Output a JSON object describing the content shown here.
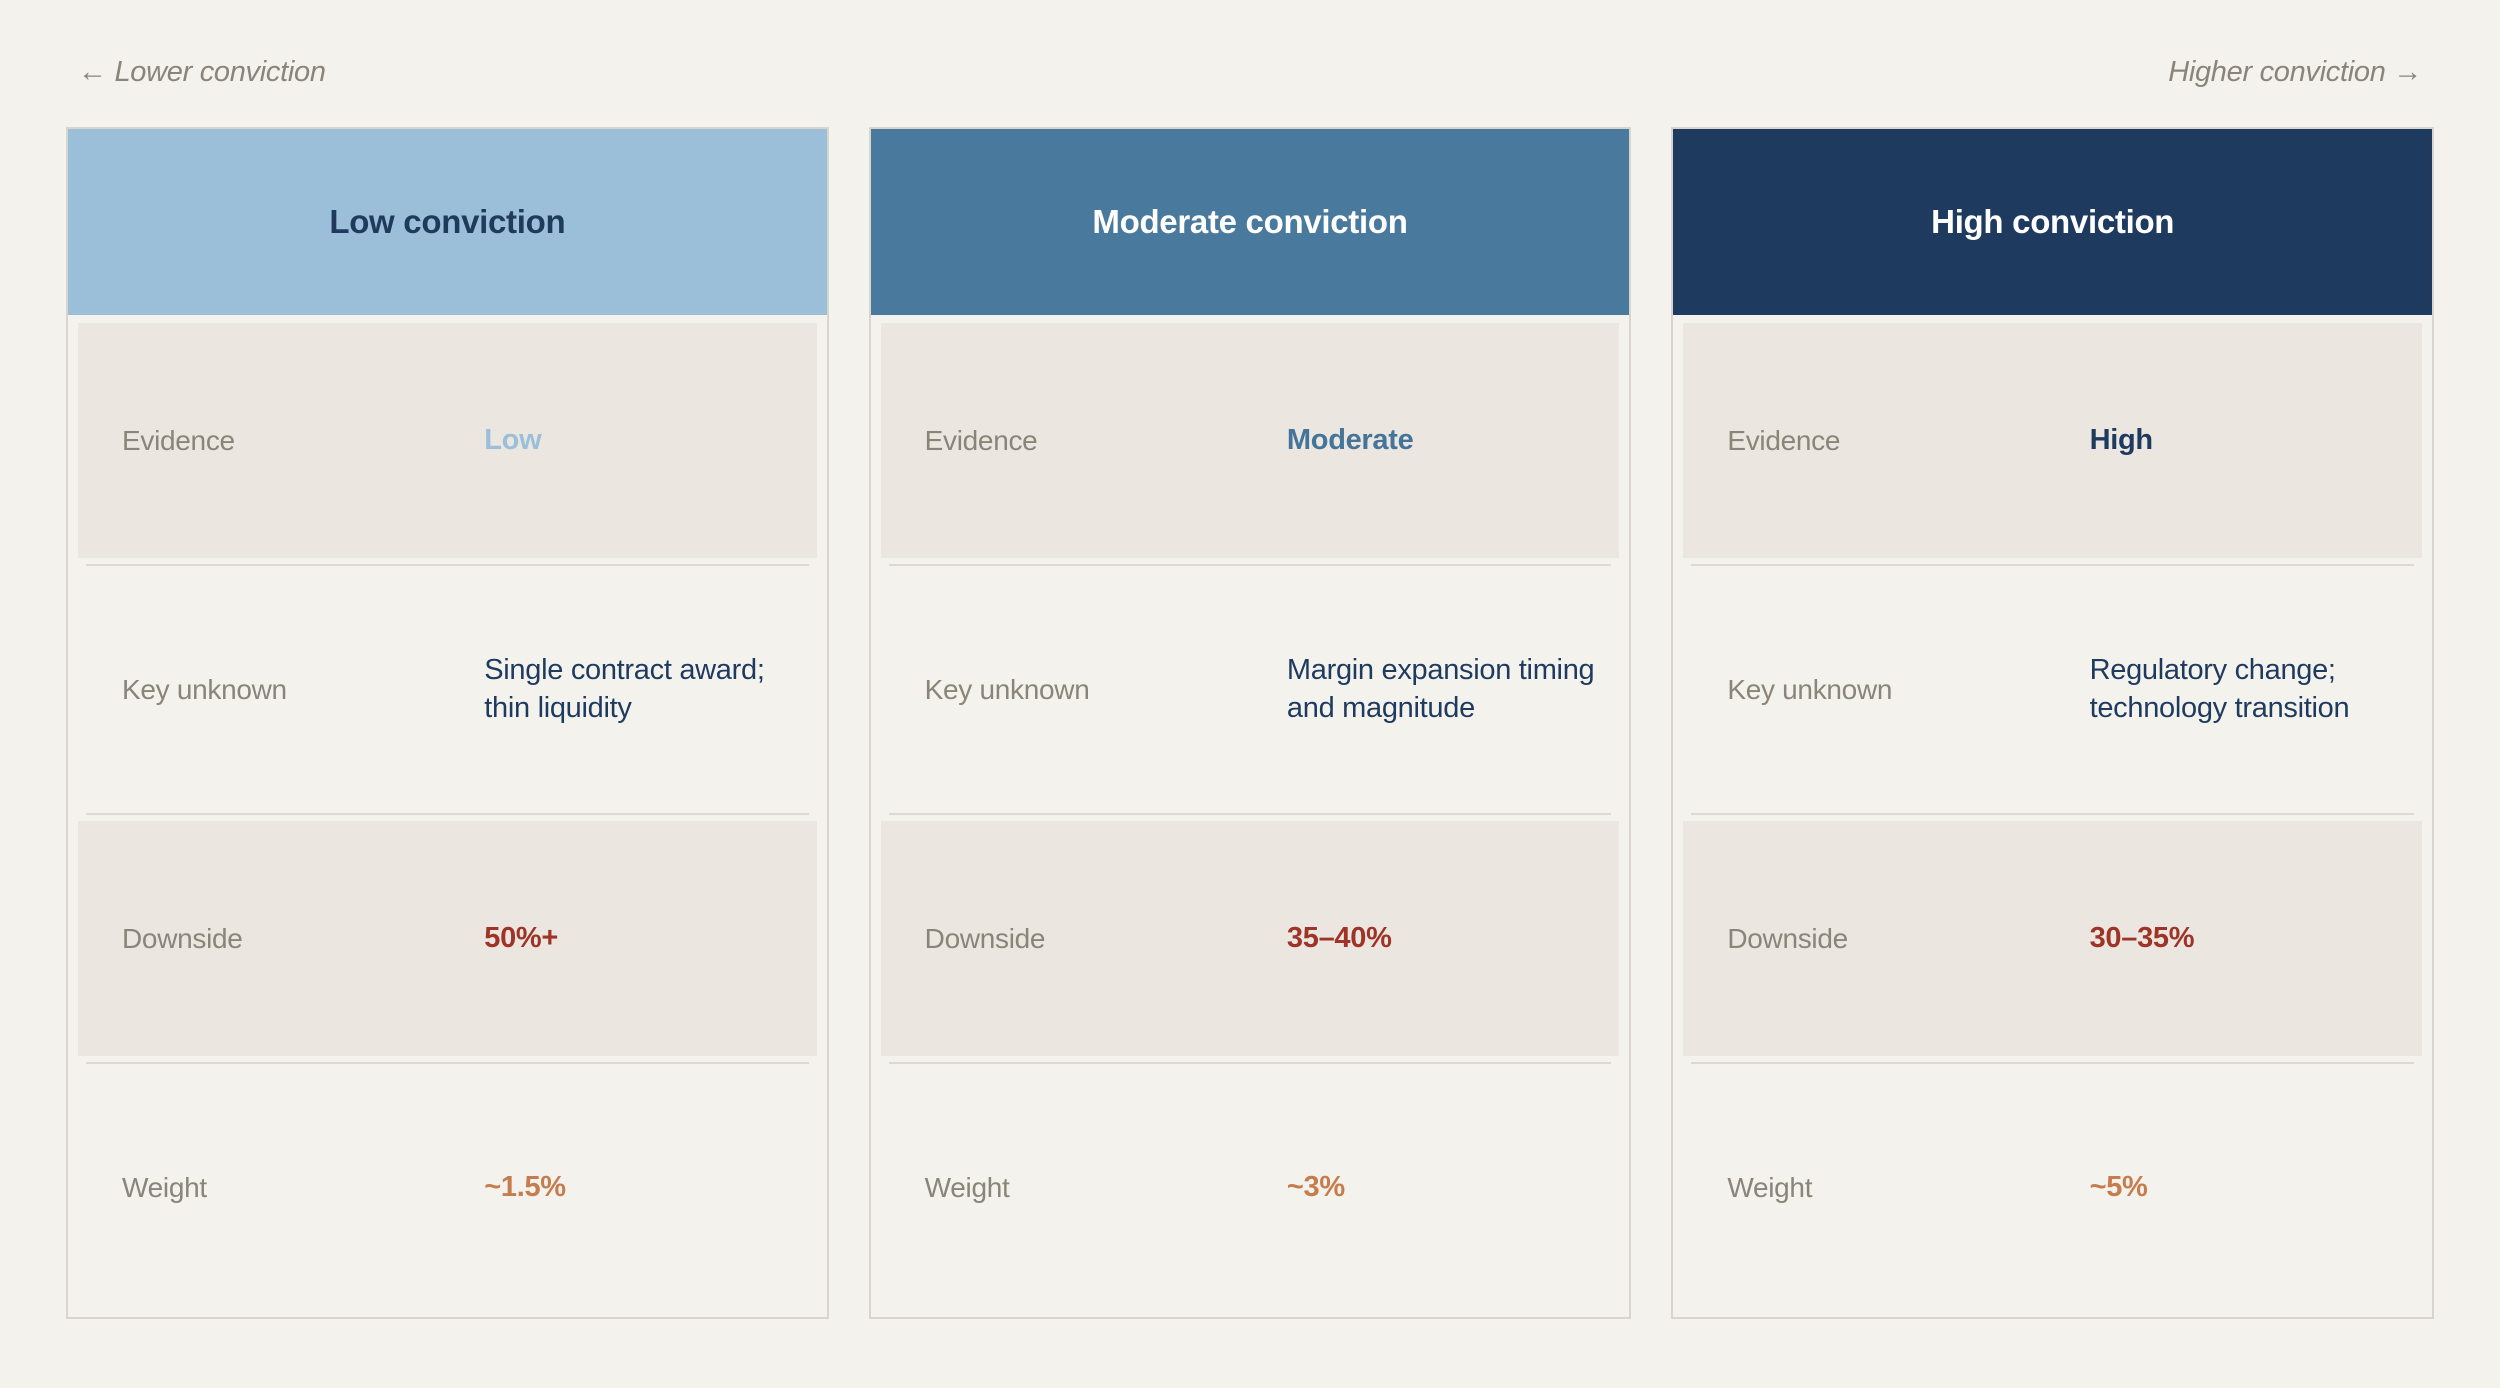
{
  "direction_labels": {
    "left": "← Lower conviction",
    "right": "Higher conviction →"
  },
  "row_labels": {
    "evidence": "Evidence",
    "key_unknown": "Key unknown",
    "downside": "Downside",
    "weight": "Weight"
  },
  "cards": [
    {
      "level": "low",
      "title": "Low conviction",
      "evidence": "Low",
      "key_unknown": "Single contract award; thin liquidity",
      "downside": "50%+",
      "weight": "~1.5%",
      "header_bg": "#9bbfd8",
      "header_text_color": "#1f3a5d",
      "evidence_color": "#9bbfd8"
    },
    {
      "level": "moderate",
      "title": "Moderate conviction",
      "evidence": "Moderate",
      "key_unknown": "Margin expansion timing and magnitude",
      "downside": "35–40%",
      "weight": "~3%",
      "header_bg": "#49799c",
      "header_text_color": "#ffffff",
      "evidence_color": "#45749a"
    },
    {
      "level": "high",
      "title": "High conviction",
      "evidence": "High",
      "key_unknown": "Regulatory change; technology transition",
      "downside": "30–35%",
      "weight": "~5%",
      "header_bg": "#1f3a5f",
      "header_text_color": "#ffffff",
      "evidence_color": "#1f3a5f"
    }
  ],
  "colors": {
    "page_bg": "#f4f2ed",
    "row_alt_bg": "#ebe7e0",
    "label_gray": "#8a8578",
    "downside_red": "#9e3428",
    "weight_orange": "#c57d4d",
    "card_border": "#d8d5ce",
    "divider": "#dcd8d2"
  }
}
